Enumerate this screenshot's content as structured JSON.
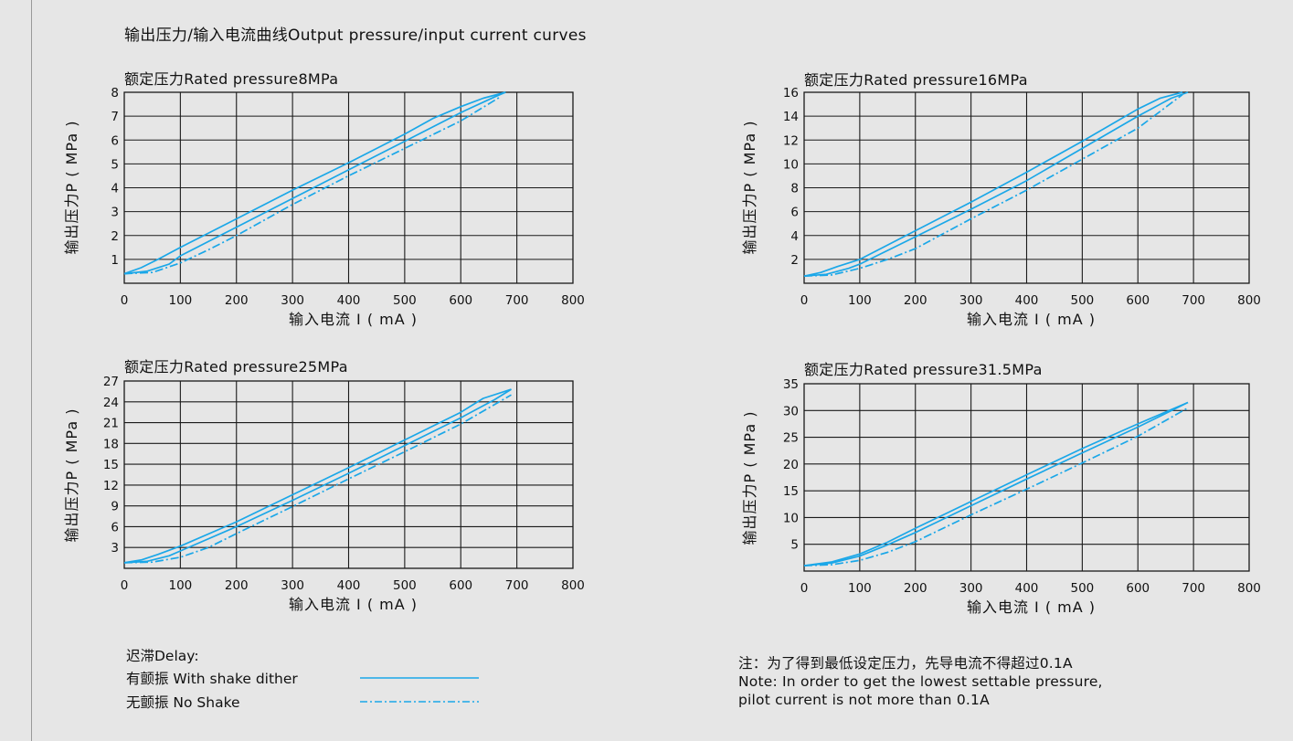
{
  "page_title": "输出压力/输入电流曲线Output pressure/input current curves",
  "chart_data": [
    {
      "type": "line",
      "title": "额定压力Rated pressure8MPa",
      "xlabel": "输入电流 I ( mA )",
      "ylabel": "输出压力P ( MPa )",
      "xlim": [
        0,
        800
      ],
      "ylim": [
        0,
        8
      ],
      "x_ticks": [
        0,
        100,
        200,
        300,
        400,
        500,
        600,
        700,
        800
      ],
      "y_ticks": [
        1,
        2,
        3,
        4,
        5,
        6,
        7,
        8
      ],
      "grid": true,
      "series": [
        {
          "style": "dither-up",
          "x": [
            0,
            30,
            60,
            100,
            200,
            300,
            400,
            500,
            550,
            600,
            640,
            680
          ],
          "y": [
            0.4,
            0.65,
            1.0,
            1.5,
            2.7,
            3.9,
            5.05,
            6.25,
            6.9,
            7.4,
            7.75,
            8.0
          ]
        },
        {
          "style": "dither-down",
          "x": [
            0,
            40,
            80,
            100,
            200,
            300,
            400,
            500,
            600,
            660,
            680
          ],
          "y": [
            0.4,
            0.5,
            0.8,
            1.15,
            2.35,
            3.55,
            4.75,
            5.95,
            7.15,
            7.8,
            8.0
          ]
        },
        {
          "style": "no-shake",
          "x": [
            0,
            50,
            100,
            150,
            200,
            300,
            400,
            500,
            600,
            670
          ],
          "y": [
            0.4,
            0.45,
            0.85,
            1.4,
            2.0,
            3.3,
            4.5,
            5.65,
            6.8,
            7.8
          ]
        }
      ]
    },
    {
      "type": "line",
      "title": "额定压力Rated pressure16MPa",
      "xlabel": "输入电流 I ( mA )",
      "ylabel": "输出压力P ( MPa )",
      "xlim": [
        0,
        800
      ],
      "ylim": [
        0,
        16
      ],
      "x_ticks": [
        0,
        100,
        200,
        300,
        400,
        500,
        600,
        700,
        800
      ],
      "y_ticks": [
        2,
        4,
        6,
        8,
        10,
        12,
        14,
        16
      ],
      "grid": true,
      "series": [
        {
          "style": "dither-up",
          "x": [
            0,
            30,
            60,
            100,
            200,
            300,
            400,
            500,
            600,
            640,
            680
          ],
          "y": [
            0.6,
            0.9,
            1.4,
            2.0,
            4.4,
            6.8,
            9.3,
            11.9,
            14.6,
            15.5,
            16.0
          ]
        },
        {
          "style": "dither-down",
          "x": [
            0,
            40,
            80,
            100,
            200,
            300,
            400,
            500,
            600,
            660,
            690
          ],
          "y": [
            0.6,
            0.75,
            1.25,
            1.6,
            3.9,
            6.2,
            8.6,
            11.3,
            14.0,
            15.5,
            16.0
          ]
        },
        {
          "style": "no-shake",
          "x": [
            0,
            50,
            100,
            150,
            200,
            300,
            400,
            500,
            600,
            680
          ],
          "y": [
            0.6,
            0.7,
            1.25,
            2.0,
            2.9,
            5.4,
            7.8,
            10.4,
            13.0,
            15.8
          ]
        }
      ]
    },
    {
      "type": "line",
      "title": "额定压力Rated pressure25MPa",
      "xlabel": "输入电流 I ( mA )",
      "ylabel": "输出压力P ( MPa )",
      "xlim": [
        0,
        800
      ],
      "ylim": [
        0,
        27
      ],
      "x_ticks": [
        0,
        100,
        200,
        300,
        400,
        500,
        600,
        700,
        800
      ],
      "y_ticks": [
        3,
        6,
        9,
        12,
        15,
        18,
        21,
        24,
        27
      ],
      "grid": true,
      "series": [
        {
          "style": "dither-up",
          "x": [
            0,
            30,
            60,
            100,
            200,
            300,
            400,
            500,
            600,
            640,
            690
          ],
          "y": [
            0.8,
            1.2,
            2.0,
            3.2,
            6.7,
            10.6,
            14.5,
            18.5,
            22.5,
            24.5,
            25.8
          ]
        },
        {
          "style": "dither-down",
          "x": [
            0,
            40,
            80,
            100,
            200,
            300,
            400,
            500,
            600,
            660,
            690
          ],
          "y": [
            0.8,
            1.0,
            1.8,
            2.5,
            6.0,
            9.8,
            13.7,
            17.7,
            21.7,
            24.3,
            25.8
          ]
        },
        {
          "style": "no-shake",
          "x": [
            0,
            50,
            100,
            150,
            200,
            300,
            400,
            500,
            600,
            690
          ],
          "y": [
            0.8,
            0.9,
            1.6,
            3.0,
            5.0,
            8.9,
            12.9,
            16.8,
            20.8,
            25.0
          ]
        }
      ]
    },
    {
      "type": "line",
      "title": "额定压力Rated pressure31.5MPa",
      "xlabel": "输入电流 I ( mA )",
      "ylabel": "输出压力P ( MPa )",
      "xlim": [
        0,
        800
      ],
      "ylim": [
        0,
        35
      ],
      "x_ticks": [
        0,
        100,
        200,
        300,
        400,
        500,
        600,
        700,
        800
      ],
      "y_ticks": [
        5,
        10,
        15,
        20,
        25,
        30,
        35
      ],
      "grid": true,
      "series": [
        {
          "style": "dither-up",
          "x": [
            0,
            50,
            100,
            150,
            200,
            300,
            400,
            500,
            600,
            690
          ],
          "y": [
            1.0,
            1.7,
            3.2,
            5.4,
            8.0,
            13.0,
            18.0,
            22.9,
            27.5,
            31.5
          ]
        },
        {
          "style": "dither-down",
          "x": [
            0,
            50,
            100,
            150,
            200,
            300,
            400,
            500,
            600,
            690
          ],
          "y": [
            1.0,
            1.5,
            2.8,
            4.9,
            7.2,
            12.2,
            17.2,
            22.1,
            26.9,
            31.5
          ]
        },
        {
          "style": "no-shake",
          "x": [
            0,
            50,
            100,
            150,
            200,
            300,
            400,
            500,
            600,
            690
          ],
          "y": [
            1.0,
            1.2,
            2.0,
            3.5,
            5.5,
            10.5,
            15.3,
            20.2,
            25.2,
            30.5
          ]
        }
      ]
    }
  ],
  "legend": {
    "title": "迟滞Delay:",
    "items": [
      {
        "label": "有颤振 With shake dither",
        "style": "solid"
      },
      {
        "label": "无颤振 No Shake",
        "style": "dash-dot"
      }
    ]
  },
  "note": {
    "line1": "注：为了得到最低设定压力，先导电流不得超过0.1A",
    "line2": "Note: In order to get the lowest settable pressure,",
    "line3": "pilot current is not more than 0.1A"
  },
  "colors": {
    "curve": "#1aa7e8",
    "grid": "#1a1a1a",
    "background": "#e6e6e6"
  }
}
